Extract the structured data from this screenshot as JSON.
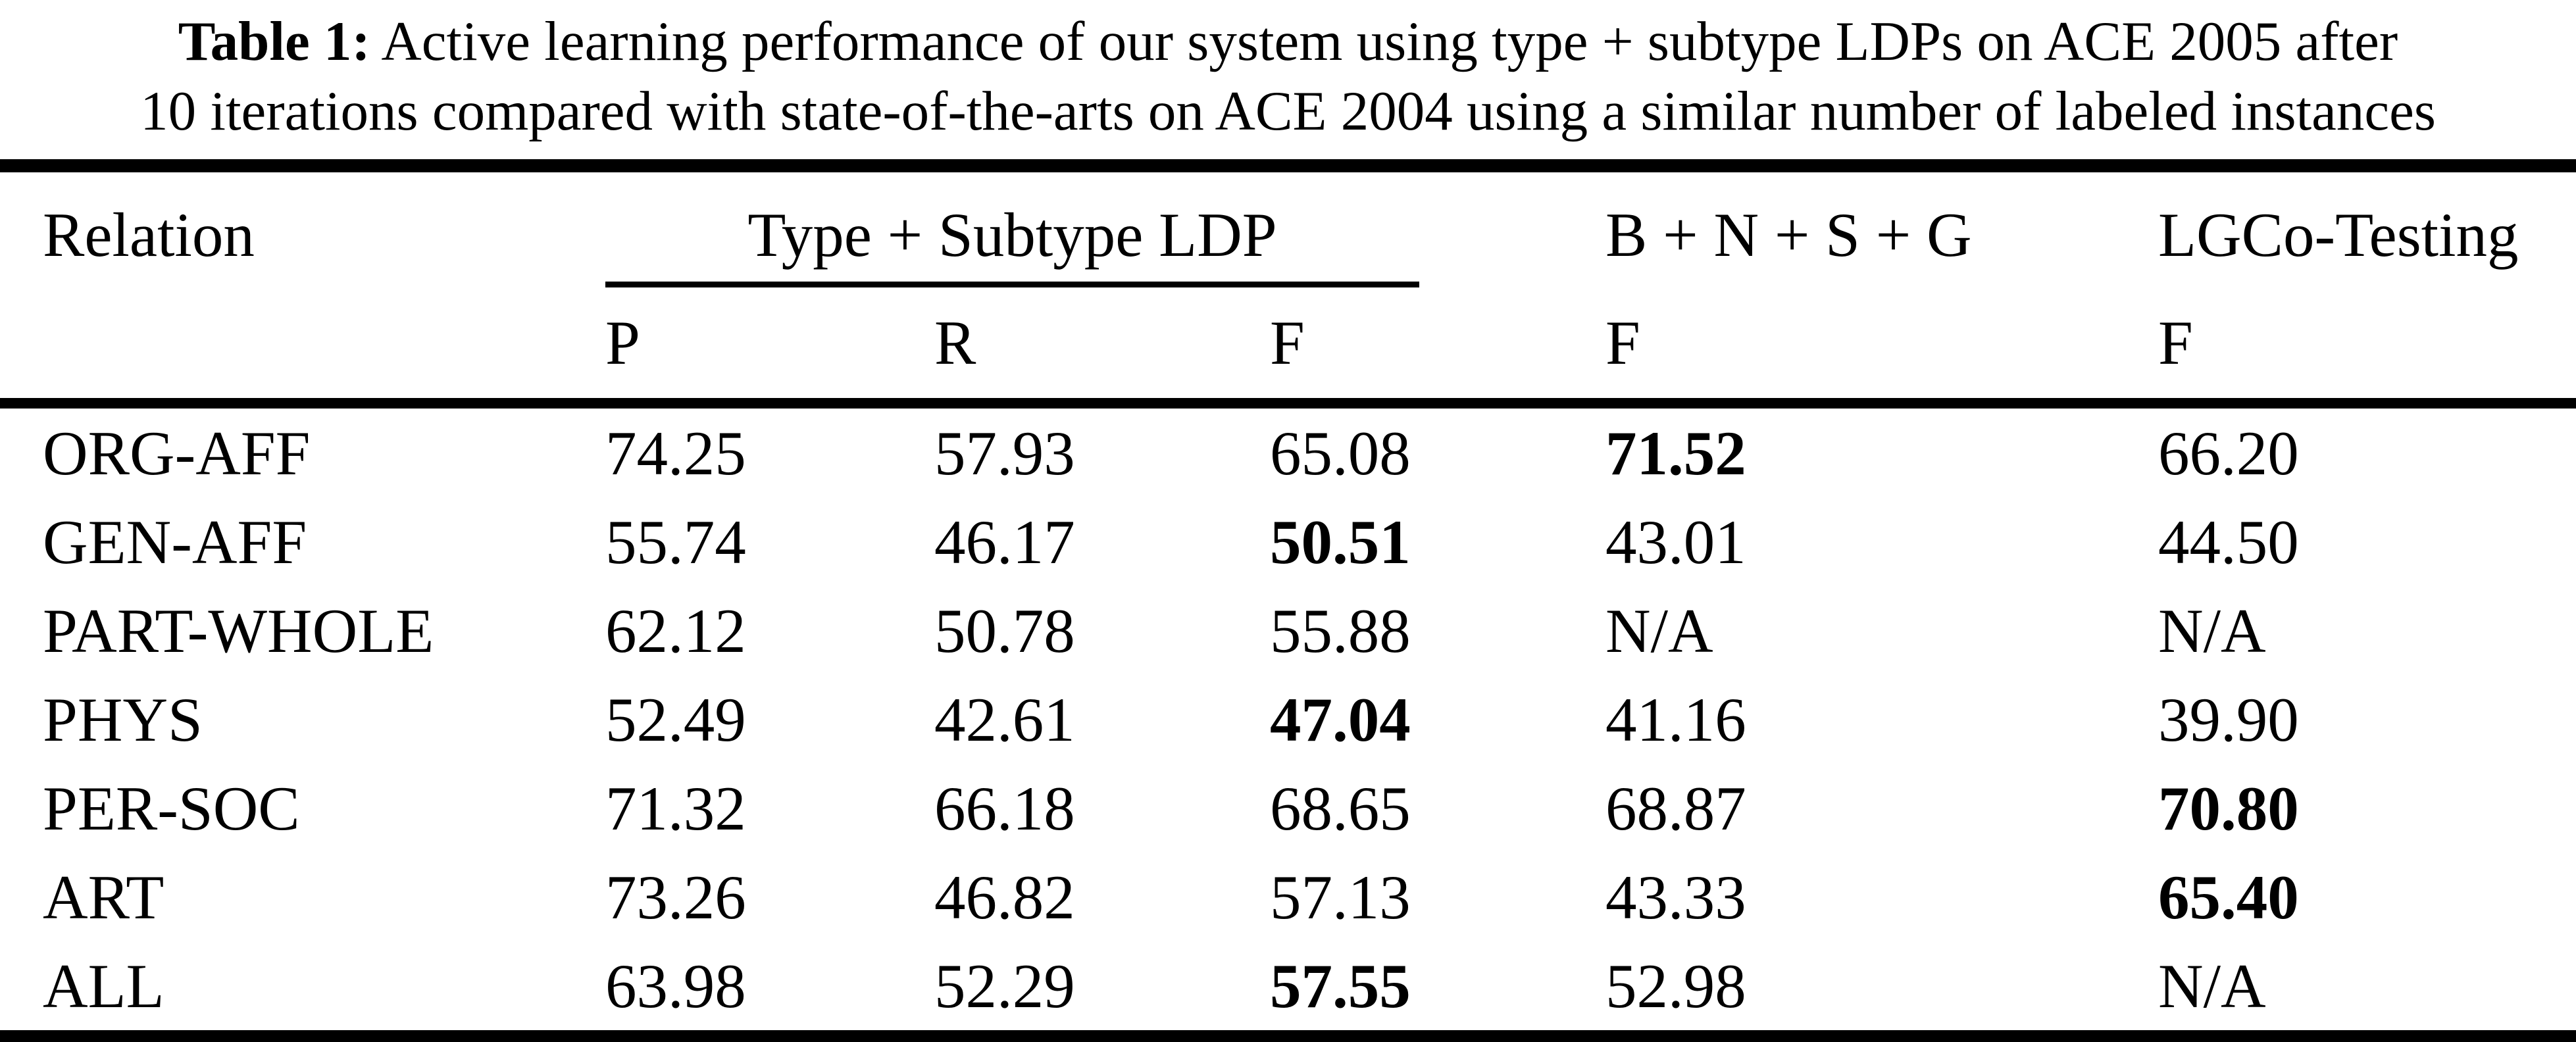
{
  "caption": {
    "label": "Table 1:",
    "line1_rest": "Active learning performance of our system using type + subtype LDPs on ACE 2005 after",
    "line2": "10 iterations compared with state-of-the-arts on ACE 2004 using a similar number of labeled instances"
  },
  "table": {
    "headers": {
      "relation": "Relation",
      "group": "Type + Subtype LDP",
      "bnsg": "B + N + S + G",
      "lgco": "LGCo-Testing",
      "sub": [
        "P",
        "R",
        "F",
        "F",
        "F"
      ]
    },
    "rows": [
      {
        "relation": "ORG-AFF",
        "values": [
          "74.25",
          "57.93",
          "65.08",
          "71.52",
          "66.20"
        ]
      },
      {
        "relation": "GEN-AFF",
        "values": [
          "55.74",
          "46.17",
          "50.51",
          "43.01",
          "44.50"
        ]
      },
      {
        "relation": "PART-WHOLE",
        "values": [
          "62.12",
          "50.78",
          "55.88",
          "N/A",
          "N/A"
        ]
      },
      {
        "relation": "PHYS",
        "values": [
          "52.49",
          "42.61",
          "47.04",
          "41.16",
          "39.90"
        ]
      },
      {
        "relation": "PER-SOC",
        "values": [
          "71.32",
          "66.18",
          "68.65",
          "68.87",
          "70.80"
        ]
      },
      {
        "relation": "ART",
        "values": [
          "73.26",
          "46.82",
          "57.13",
          "43.33",
          "65.40"
        ]
      },
      {
        "relation": "ALL",
        "values": [
          "63.98",
          "52.29",
          "57.55",
          "52.98",
          "N/A"
        ]
      }
    ],
    "bold_cells": [
      [
        0,
        3
      ],
      [
        1,
        2
      ],
      [
        3,
        2
      ],
      [
        4,
        4
      ],
      [
        5,
        4
      ],
      [
        6,
        2
      ]
    ]
  }
}
